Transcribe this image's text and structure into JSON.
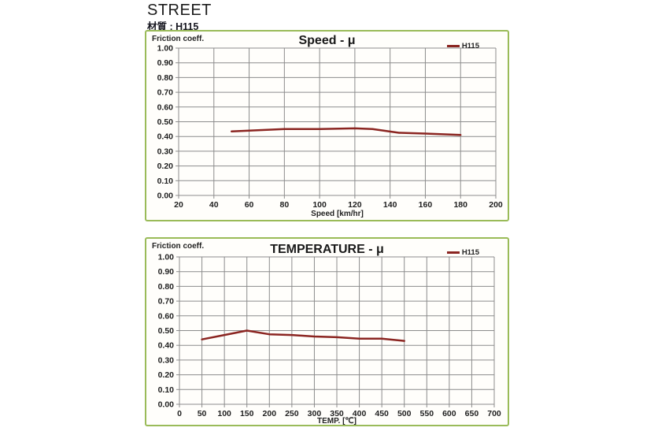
{
  "page": {
    "title": "STREET",
    "material": "材質 : H115"
  },
  "colors": {
    "panel_border": "#9abb59",
    "series": "#8b2521",
    "grid": "#8c8c8c",
    "text": "#1f1f1f"
  },
  "chart_data": [
    {
      "type": "line",
      "title": "Speed - μ",
      "ylabel": "Friction coeff.",
      "xlabel": "Speed [km/hr]",
      "legend_position": "top-right",
      "grid": true,
      "xlim": [
        20,
        200
      ],
      "ylim": [
        0.0,
        1.0
      ],
      "x_ticks": [
        20,
        40,
        60,
        80,
        100,
        120,
        140,
        160,
        180,
        200
      ],
      "y_ticks": [
        "1.00",
        "0.90",
        "0.80",
        "0.70",
        "0.60",
        "0.50",
        "0.40",
        "0.30",
        "0.20",
        "0.10",
        "0.00"
      ],
      "series": [
        {
          "name": "H115",
          "color": "#8b2521",
          "x": [
            50,
            60,
            80,
            100,
            120,
            130,
            145,
            160,
            180
          ],
          "y": [
            0.435,
            0.44,
            0.45,
            0.45,
            0.455,
            0.45,
            0.425,
            0.42,
            0.41
          ]
        }
      ]
    },
    {
      "type": "line",
      "title": "TEMPERATURE - μ",
      "ylabel": "Friction coeff.",
      "xlabel": "TEMP. [℃]",
      "legend_position": "top-right",
      "grid": true,
      "xlim": [
        0,
        700
      ],
      "ylim": [
        0.0,
        1.0
      ],
      "x_ticks": [
        0,
        50,
        100,
        150,
        200,
        250,
        300,
        350,
        400,
        450,
        500,
        550,
        600,
        650,
        700
      ],
      "y_ticks": [
        "1.00",
        "0.90",
        "0.80",
        "0.70",
        "0.60",
        "0.50",
        "0.40",
        "0.30",
        "0.20",
        "0.10",
        "0.00"
      ],
      "series": [
        {
          "name": "H115",
          "color": "#8b2521",
          "x": [
            50,
            100,
            150,
            200,
            250,
            300,
            350,
            400,
            450,
            500
          ],
          "y": [
            0.44,
            0.47,
            0.5,
            0.475,
            0.47,
            0.46,
            0.455,
            0.445,
            0.445,
            0.43
          ]
        }
      ]
    }
  ]
}
